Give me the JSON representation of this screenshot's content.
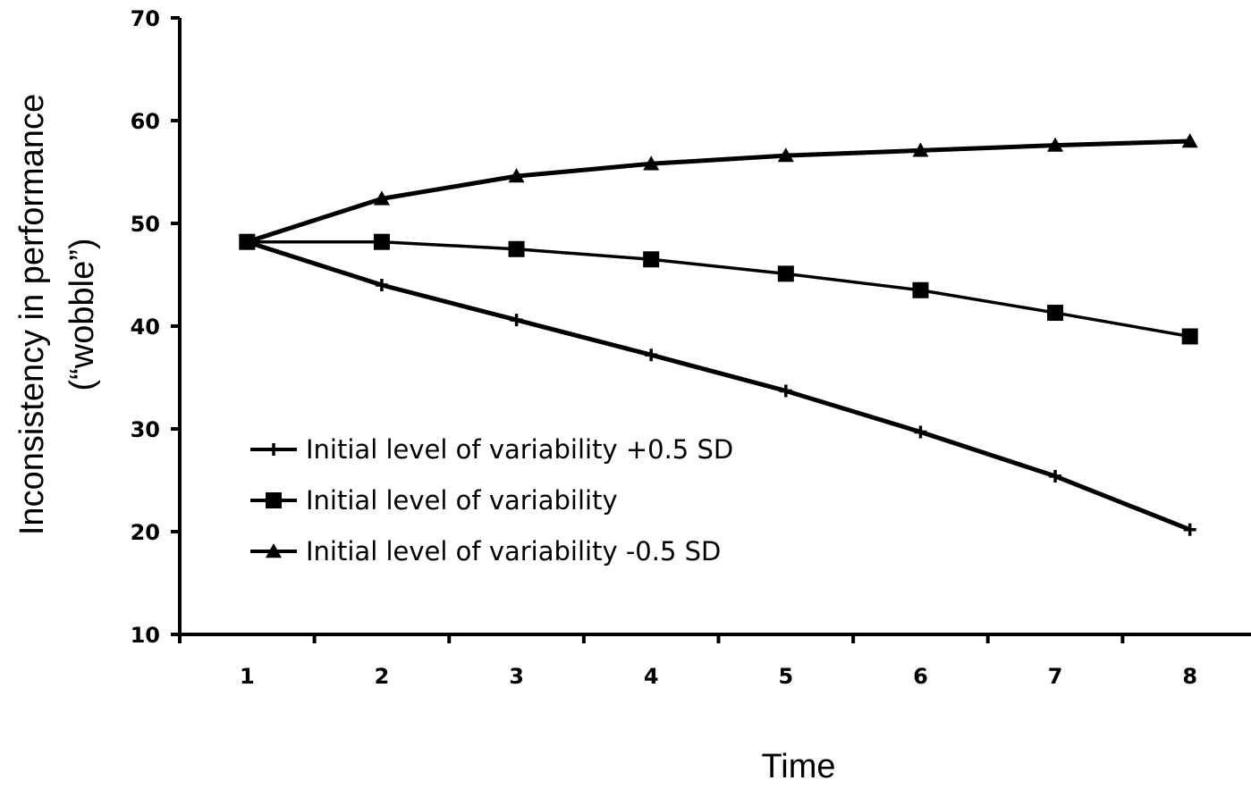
{
  "chart_data": {
    "type": "line",
    "title": "",
    "xlabel": "Time",
    "ylabel_line1": "Inconsistency in performance",
    "ylabel_line2": "(“wobble”)",
    "x": [
      1,
      2,
      3,
      4,
      5,
      6,
      7,
      8
    ],
    "xlim": [
      0.5,
      8.5
    ],
    "ylim": [
      10,
      70
    ],
    "yticks": [
      10,
      20,
      30,
      40,
      50,
      60,
      70
    ],
    "legend_position": "left",
    "line_color": "#000000",
    "series": [
      {
        "name": "Initial level of variability +0.5 SD",
        "marker": "plus",
        "values": [
          48.2,
          44.0,
          40.6,
          37.2,
          33.7,
          29.7,
          25.4,
          20.2
        ]
      },
      {
        "name": "Initial level of variability",
        "marker": "square",
        "values": [
          48.2,
          48.2,
          47.5,
          46.5,
          45.1,
          43.5,
          41.3,
          39.0
        ]
      },
      {
        "name": "Initial level of variability -0.5 SD",
        "marker": "triangle",
        "values": [
          48.2,
          52.4,
          54.6,
          55.8,
          56.6,
          57.1,
          57.6,
          58.0
        ]
      }
    ]
  }
}
